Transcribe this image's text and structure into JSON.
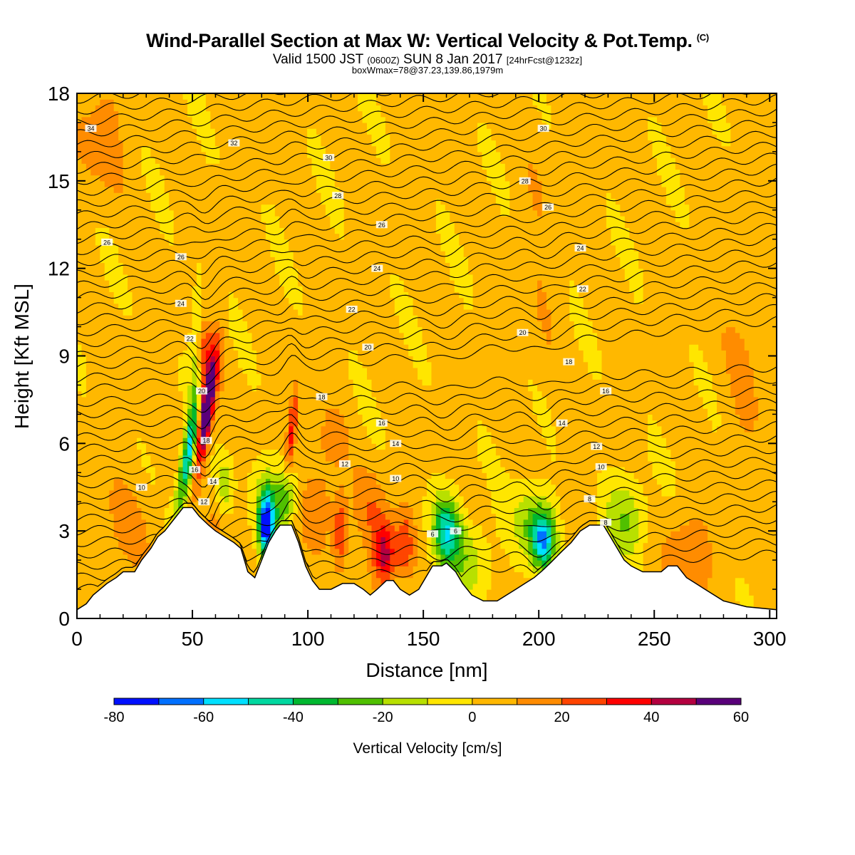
{
  "header": {
    "title": "Wind-Parallel Section at Max W: Vertical Velocity & Pot.Temp.",
    "copyright": "(C)",
    "valid_prefix": "Valid 1500 JST",
    "valid_utc": "(0600Z)",
    "valid_date": "SUN 8 Jan 2017",
    "forecast": "[24hrFcst@1232z]",
    "box_info": "boxWmax=78@37.23,139.86,1979m"
  },
  "chart_data": {
    "type": "heatmap",
    "xlabel": "Distance [nm]",
    "ylabel": "Height [Kft MSL]",
    "xlim": [
      0,
      303
    ],
    "ylim": [
      0,
      18
    ],
    "x_ticks": [
      "0",
      "50",
      "100",
      "150",
      "200",
      "250",
      "300"
    ],
    "y_ticks": [
      "0",
      "3",
      "6",
      "9",
      "12",
      "15",
      "18"
    ],
    "colorbar": {
      "label": "Vertical Velocity [cm/s]",
      "bounds": [
        -80,
        -70,
        -60,
        -50,
        -40,
        -30,
        -20,
        -10,
        0,
        10,
        20,
        30,
        40,
        50,
        60
      ],
      "tick_labels": [
        "-80",
        "-60",
        "-40",
        "-20",
        "0",
        "20",
        "40",
        "60"
      ],
      "colors": [
        "#0010ff",
        "#0070ff",
        "#00e0ff",
        "#00d8a0",
        "#00b830",
        "#50c000",
        "#b8e000",
        "#ffe600",
        "#ffb800",
        "#ff8c00",
        "#ff4500",
        "#ff0000",
        "#b40040",
        "#5a007a"
      ]
    },
    "terrain": [
      [
        0,
        0.3
      ],
      [
        4,
        0.5
      ],
      [
        7,
        0.8
      ],
      [
        10,
        1.0
      ],
      [
        13,
        1.2
      ],
      [
        17,
        1.4
      ],
      [
        20,
        1.6
      ],
      [
        25,
        1.6
      ],
      [
        28,
        2.0
      ],
      [
        32,
        2.4
      ],
      [
        35,
        2.8
      ],
      [
        38,
        3.0
      ],
      [
        41,
        3.3
      ],
      [
        44,
        3.6
      ],
      [
        46,
        3.8
      ],
      [
        50,
        3.8
      ],
      [
        53,
        3.5
      ],
      [
        57,
        3.2
      ],
      [
        60,
        3.0
      ],
      [
        64,
        2.8
      ],
      [
        68,
        2.6
      ],
      [
        71,
        2.4
      ],
      [
        74,
        1.6
      ],
      [
        77,
        1.4
      ],
      [
        80,
        2.0
      ],
      [
        83,
        2.6
      ],
      [
        86,
        3.0
      ],
      [
        88,
        3.2
      ],
      [
        93,
        3.2
      ],
      [
        96,
        2.6
      ],
      [
        99,
        1.8
      ],
      [
        102,
        1.3
      ],
      [
        105,
        1.0
      ],
      [
        110,
        1.0
      ],
      [
        115,
        1.2
      ],
      [
        120,
        1.2
      ],
      [
        124,
        1.0
      ],
      [
        127,
        0.8
      ],
      [
        130,
        1.0
      ],
      [
        134,
        1.3
      ],
      [
        137,
        1.3
      ],
      [
        140,
        1.0
      ],
      [
        144,
        0.8
      ],
      [
        148,
        1.0
      ],
      [
        151,
        1.4
      ],
      [
        154,
        1.8
      ],
      [
        158,
        1.8
      ],
      [
        160,
        1.9
      ],
      [
        164,
        1.6
      ],
      [
        167,
        1.2
      ],
      [
        171,
        0.8
      ],
      [
        176,
        0.6
      ],
      [
        182,
        0.6
      ],
      [
        186,
        0.8
      ],
      [
        190,
        1.0
      ],
      [
        194,
        1.2
      ],
      [
        198,
        1.4
      ],
      [
        201,
        1.6
      ],
      [
        205,
        1.9
      ],
      [
        210,
        2.3
      ],
      [
        214,
        2.6
      ],
      [
        218,
        3.0
      ],
      [
        222,
        3.2
      ],
      [
        228,
        3.2
      ],
      [
        231,
        2.8
      ],
      [
        234,
        2.4
      ],
      [
        237,
        2.0
      ],
      [
        240,
        1.8
      ],
      [
        245,
        1.6
      ],
      [
        250,
        1.6
      ],
      [
        253,
        1.6
      ],
      [
        256,
        1.8
      ],
      [
        260,
        1.8
      ],
      [
        264,
        1.4
      ],
      [
        268,
        1.2
      ],
      [
        272,
        1.0
      ],
      [
        276,
        0.8
      ],
      [
        280,
        0.6
      ],
      [
        290,
        0.4
      ],
      [
        303,
        0.3
      ]
    ],
    "theta_labels": [
      {
        "text": "34",
        "x": 6,
        "y": 16.8
      },
      {
        "text": "32",
        "x": 68,
        "y": 16.3
      },
      {
        "text": "30",
        "x": 109,
        "y": 15.8
      },
      {
        "text": "30",
        "x": 202,
        "y": 16.8
      },
      {
        "text": "28",
        "x": 113,
        "y": 14.5
      },
      {
        "text": "28",
        "x": 194,
        "y": 15.0
      },
      {
        "text": "26",
        "x": 132,
        "y": 13.5
      },
      {
        "text": "26",
        "x": 204,
        "y": 14.1
      },
      {
        "text": "26",
        "x": 13,
        "y": 12.9
      },
      {
        "text": "26",
        "x": 45,
        "y": 12.4
      },
      {
        "text": "24",
        "x": 130,
        "y": 12.0
      },
      {
        "text": "24",
        "x": 218,
        "y": 12.7
      },
      {
        "text": "24",
        "x": 45,
        "y": 10.8
      },
      {
        "text": "22",
        "x": 119,
        "y": 10.6
      },
      {
        "text": "22",
        "x": 219,
        "y": 11.3
      },
      {
        "text": "22",
        "x": 49,
        "y": 9.6
      },
      {
        "text": "20",
        "x": 126,
        "y": 9.3
      },
      {
        "text": "20",
        "x": 193,
        "y": 9.8
      },
      {
        "text": "20",
        "x": 54,
        "y": 7.8
      },
      {
        "text": "18",
        "x": 106,
        "y": 7.6
      },
      {
        "text": "18",
        "x": 213,
        "y": 8.8
      },
      {
        "text": "18",
        "x": 56,
        "y": 6.1
      },
      {
        "text": "16",
        "x": 132,
        "y": 6.7
      },
      {
        "text": "16",
        "x": 229,
        "y": 7.8
      },
      {
        "text": "16",
        "x": 51,
        "y": 5.1
      },
      {
        "text": "14",
        "x": 138,
        "y": 6.0
      },
      {
        "text": "14",
        "x": 210,
        "y": 6.7
      },
      {
        "text": "14",
        "x": 59,
        "y": 4.7
      },
      {
        "text": "12",
        "x": 116,
        "y": 5.3
      },
      {
        "text": "12",
        "x": 225,
        "y": 5.9
      },
      {
        "text": "12",
        "x": 55,
        "y": 4.0
      },
      {
        "text": "10",
        "x": 28,
        "y": 4.5
      },
      {
        "text": "10",
        "x": 138,
        "y": 4.8
      },
      {
        "text": "10",
        "x": 227,
        "y": 5.2
      },
      {
        "text": "8",
        "x": 222,
        "y": 4.1
      },
      {
        "text": "8",
        "x": 229,
        "y": 3.3
      },
      {
        "text": "6",
        "x": 154,
        "y": 2.9
      },
      {
        "text": "6",
        "x": 164,
        "y": 3.0
      }
    ],
    "w_centers": [
      {
        "x": 56,
        "y": 7.2,
        "sx": 3.0,
        "sy": 2.0,
        "tilt": 0.22,
        "w": 78
      },
      {
        "x": 55,
        "y": 9.2,
        "sx": 2.2,
        "sy": 0.9,
        "tilt": 0.1,
        "w": 20
      },
      {
        "x": 48,
        "y": 5.5,
        "sx": 3.0,
        "sy": 1.8,
        "tilt": 0.25,
        "w": -55
      },
      {
        "x": 51,
        "y": 8.2,
        "sx": 2.5,
        "sy": 3.2,
        "tilt": 0.05,
        "w": -15
      },
      {
        "x": 64,
        "y": 4.5,
        "sx": 3.5,
        "sy": 1.0,
        "tilt": 0.0,
        "w": -20
      },
      {
        "x": 82,
        "y": 3.2,
        "sx": 3.0,
        "sy": 1.0,
        "tilt": 0.0,
        "w": -75
      },
      {
        "x": 84,
        "y": 3.8,
        "sx": 7.0,
        "sy": 1.5,
        "tilt": 0.0,
        "w": -25
      },
      {
        "x": 93,
        "y": 6.4,
        "sx": 2.0,
        "sy": 1.6,
        "tilt": 0.15,
        "w": 30
      },
      {
        "x": 91,
        "y": 4.3,
        "sx": 4.0,
        "sy": 1.0,
        "tilt": 0.0,
        "w": -25
      },
      {
        "x": 105,
        "y": 4.0,
        "sx": 7.0,
        "sy": 1.5,
        "tilt": 0.0,
        "w": 15
      },
      {
        "x": 114,
        "y": 3.0,
        "sx": 3.0,
        "sy": 1.2,
        "tilt": 0.0,
        "w": 28
      },
      {
        "x": 133,
        "y": 2.2,
        "sx": 5.0,
        "sy": 1.1,
        "tilt": 0.0,
        "w": 42
      },
      {
        "x": 142,
        "y": 2.6,
        "sx": 4.0,
        "sy": 1.2,
        "tilt": 0.0,
        "w": 22
      },
      {
        "x": 127,
        "y": 3.8,
        "sx": 7.0,
        "sy": 1.3,
        "tilt": 0.0,
        "w": 15
      },
      {
        "x": 160,
        "y": 3.0,
        "sx": 6.0,
        "sy": 1.2,
        "tilt": 0.0,
        "w": -48
      },
      {
        "x": 170,
        "y": 2.0,
        "sx": 9.0,
        "sy": 1.4,
        "tilt": 0.0,
        "w": -18
      },
      {
        "x": 202,
        "y": 2.7,
        "sx": 5.0,
        "sy": 1.0,
        "tilt": 0.0,
        "w": -60
      },
      {
        "x": 196,
        "y": 3.4,
        "sx": 8.0,
        "sy": 1.3,
        "tilt": 0.0,
        "w": -20
      },
      {
        "x": 238,
        "y": 3.5,
        "sx": 9.0,
        "sy": 1.4,
        "tilt": 0.0,
        "w": -22
      },
      {
        "x": 265,
        "y": 2.2,
        "sx": 10.0,
        "sy": 1.5,
        "tilt": 0.0,
        "w": 17
      },
      {
        "x": 110,
        "y": 6.2,
        "sx": 6.0,
        "sy": 1.0,
        "tilt": 0.0,
        "w": 10
      },
      {
        "x": 10,
        "y": 16.5,
        "sx": 12.0,
        "sy": 2.0,
        "tilt": 0.0,
        "w": 12
      },
      {
        "x": 200,
        "y": 12.5,
        "sx": 10.0,
        "sy": 4.0,
        "tilt": 0.0,
        "w": 6
      },
      {
        "x": 290,
        "y": 9.0,
        "sx": 10.0,
        "sy": 5.0,
        "tilt": 0.0,
        "w": 7
      },
      {
        "x": 20,
        "y": 3.0,
        "sx": 15.0,
        "sy": 2.0,
        "tilt": 0.0,
        "w": 8
      },
      {
        "x": 60,
        "y": 3.2,
        "sx": 5.0,
        "sy": 1.0,
        "tilt": 0.0,
        "w": 10
      }
    ]
  }
}
